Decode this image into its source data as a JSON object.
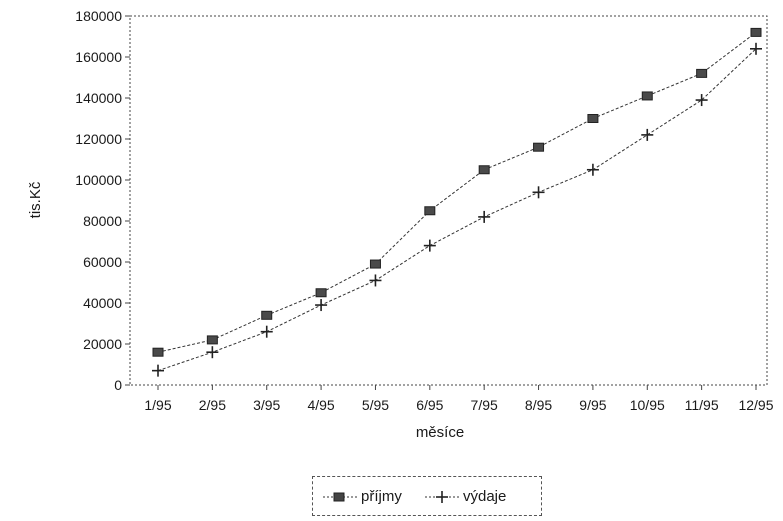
{
  "chart_data": {
    "type": "line",
    "categories": [
      "1/95",
      "2/95",
      "3/95",
      "4/95",
      "5/95",
      "6/95",
      "7/95",
      "8/95",
      "9/95",
      "10/95",
      "11/95",
      "12/95"
    ],
    "series": [
      {
        "name": "příjmy",
        "marker": "square",
        "color": "#333333",
        "values": [
          16000,
          22000,
          34000,
          45000,
          59000,
          85000,
          105000,
          116000,
          130000,
          141000,
          152000,
          172000
        ]
      },
      {
        "name": "výdaje",
        "marker": "plus",
        "color": "#333333",
        "values": [
          7000,
          16000,
          26000,
          39000,
          51000,
          68000,
          82000,
          94000,
          105000,
          122000,
          139000,
          164000
        ]
      }
    ],
    "yticks": [
      "0",
      "20000",
      "40000",
      "60000",
      "80000",
      "100000",
      "120000",
      "140000",
      "160000",
      "180000"
    ],
    "ylim": [
      0,
      180000
    ],
    "xlabel": "měsíce",
    "ylabel": "tis.Kč",
    "grid": false,
    "legend": "bottom"
  }
}
